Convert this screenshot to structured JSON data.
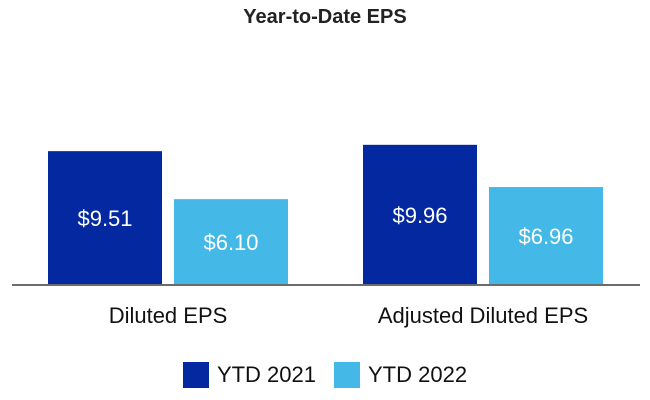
{
  "chart_data": {
    "type": "bar",
    "title": "Year-to-Date EPS",
    "xlabel": "",
    "ylabel": "",
    "categories": [
      "Diluted EPS",
      "Adjusted Diluted EPS"
    ],
    "series": [
      {
        "name": "YTD 2021",
        "values": [
          9.51,
          9.96
        ],
        "labels": [
          "$9.51",
          "$9.96"
        ],
        "color": "#0328a0"
      },
      {
        "name": "YTD 2022",
        "values": [
          6.1,
          6.96
        ],
        "labels": [
          "$6.10",
          "$6.96"
        ],
        "color": "#44b8e6"
      }
    ],
    "ylim": [
      0,
      13.5
    ],
    "grid": false,
    "axis_color": "#6b6b6b",
    "legend_position": "bottom"
  }
}
